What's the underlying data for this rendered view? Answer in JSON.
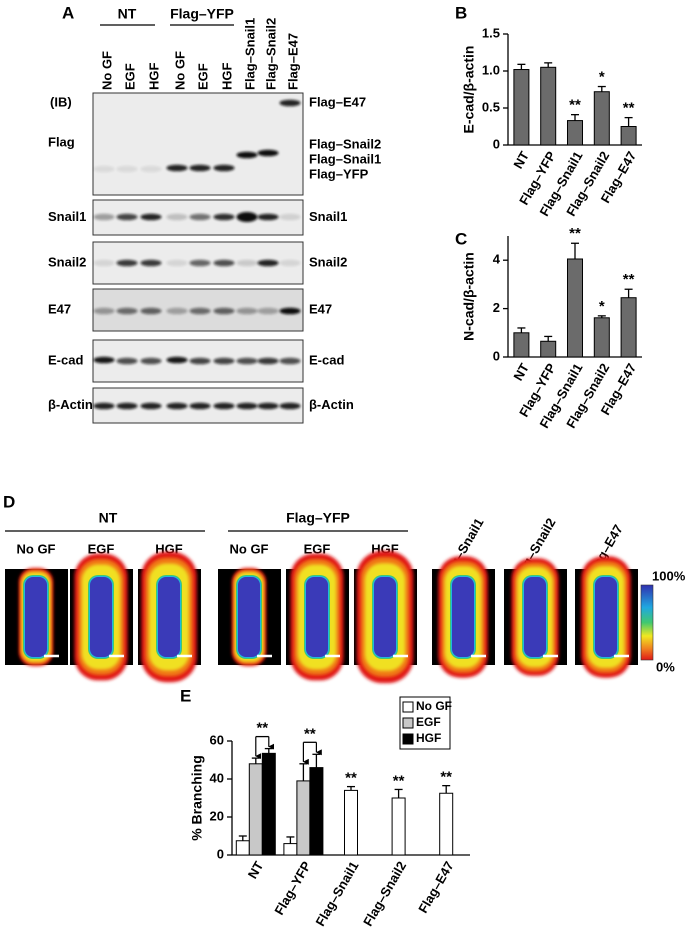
{
  "blot": {
    "panel_label": "A",
    "ib_label": "(IB)",
    "groups": [
      "NT",
      "Flag–YFP"
    ],
    "lanes": [
      "No GF",
      "EGF",
      "HGF",
      "No GF",
      "EGF",
      "HGF",
      "Flag–Snail1",
      "Flag–Snail2",
      "Flag–E47"
    ],
    "rows": [
      {
        "left": "Flag",
        "right": [
          "Flag–E47",
          "Flag–Snail2",
          "Flag–Snail1",
          "Flag–YFP"
        ]
      },
      {
        "left": "Snail1",
        "right": [
          "Snail1"
        ]
      },
      {
        "left": "Snail2",
        "right": [
          "Snail2"
        ]
      },
      {
        "left": "E47",
        "right": [
          "E47"
        ]
      },
      {
        "left": "E-cad",
        "right": [
          "E-cad"
        ]
      },
      {
        "left": "β-Actin",
        "right": [
          "β-Actin"
        ]
      }
    ]
  },
  "images": {
    "panel_label": "D",
    "groups": [
      "NT",
      "Flag–YFP"
    ],
    "lanes": [
      "No GF",
      "EGF",
      "HGF",
      "No GF",
      "EGF",
      "HGF",
      "Flag–Snail1",
      "Flag–Snail2",
      "Flag–E47"
    ],
    "colorbar": {
      "max_label": "100%",
      "min_label": "0%"
    }
  },
  "chart_data": [
    {
      "type": "bar",
      "panel_label": "B",
      "ylabel": "E-cad/β-actin",
      "categories": [
        "NT",
        "Flag–YFP",
        "Flag–Snail1",
        "Flag–Snail2",
        "Flag–E47"
      ],
      "values": [
        1.02,
        1.05,
        0.33,
        0.72,
        0.25
      ],
      "errors": [
        0.07,
        0.06,
        0.08,
        0.07,
        0.12
      ],
      "annotations": [
        null,
        null,
        "**",
        "*",
        "**"
      ],
      "color": "#6b6b6b",
      "ylim": [
        0,
        1.5
      ],
      "yticks": [
        0,
        0.5,
        {
          "value": 1,
          "label": "1.0"
        },
        1.5
      ]
    },
    {
      "type": "bar",
      "panel_label": "C",
      "ylabel": "N-cad/β-actin",
      "categories": [
        "NT",
        "Flag–YFP",
        "Flag–Snail1",
        "Flag–Snail2",
        "Flag–E47"
      ],
      "values": [
        1.0,
        0.65,
        4.05,
        1.62,
        2.45
      ],
      "errors": [
        0.2,
        0.2,
        0.65,
        0.08,
        0.35
      ],
      "annotations": [
        null,
        null,
        "**",
        "*",
        "**"
      ],
      "color": "#6b6b6b",
      "ylim": [
        0,
        5
      ],
      "yticks": [
        0,
        2,
        4
      ]
    },
    {
      "type": "grouped_bar",
      "panel_label": "E",
      "ylabel": "% Branching",
      "categories": [
        "NT",
        "Flag–YFP",
        "Flag–Snail1",
        "Flag–Snail2",
        "Flag–E47"
      ],
      "series": [
        {
          "name": "No GF",
          "color": "#ffffff",
          "values": [
            7.5,
            6,
            34,
            30,
            32.5
          ],
          "errors": [
            2.5,
            3.5,
            2,
            4.5,
            4
          ]
        },
        {
          "name": "EGF",
          "color": "#c8c8c8",
          "values": [
            48,
            39,
            null,
            null,
            null
          ],
          "errors": [
            3,
            9,
            null,
            null,
            null
          ]
        },
        {
          "name": "HGF",
          "color": "#000000",
          "values": [
            53.5,
            46,
            null,
            null,
            null
          ],
          "errors": [
            2.5,
            7,
            null,
            null,
            null
          ]
        }
      ],
      "annotations": [
        "**",
        "**",
        "**",
        "**",
        "**"
      ],
      "legend": "upper right",
      "ylim": [
        0,
        60
      ],
      "yticks": [
        0,
        20,
        40,
        60
      ]
    }
  ]
}
